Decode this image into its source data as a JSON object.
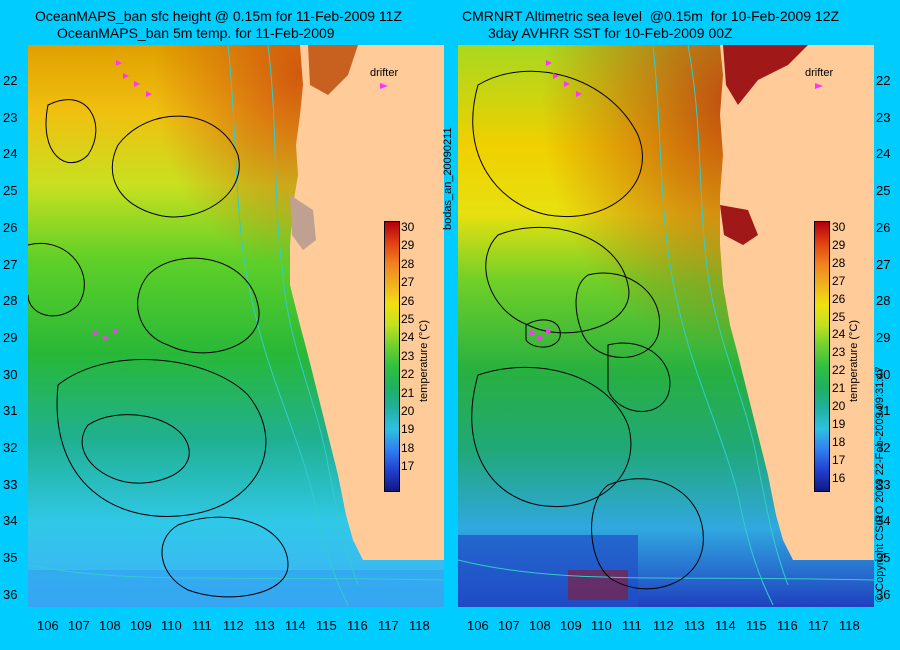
{
  "left_panel": {
    "title_line1": "OceanMAPS_ban sfc height @ 0.15m for 11-Feb-2009 11Z",
    "title_line2": "OceanMAPS_ban 5m temp. for 11-Feb-2009",
    "drifter_label": "drifter",
    "colorbar_title": "temperature (°C)"
  },
  "right_panel": {
    "title_line1": "CMRNRT Altimetric sea level  @0.15m  for 10-Feb-2009 12Z",
    "title_line2": "3day AVHRR SST for 10-Feb-2009 00Z",
    "drifter_label": "drifter",
    "colorbar_title": "temperature (°C)"
  },
  "side_label_left": "bodas_an_20090211",
  "side_label_right": "© Copyright CSIRO 2009    22-Feb-2009 09:31:47",
  "lat_labels": [
    "22",
    "23",
    "24",
    "25",
    "26",
    "27",
    "28",
    "29",
    "30",
    "31",
    "32",
    "33",
    "34",
    "35",
    "36"
  ],
  "lon_labels": [
    "106",
    "107",
    "108",
    "109",
    "110",
    "111",
    "112",
    "113",
    "114",
    "115",
    "116",
    "117",
    "118"
  ],
  "colorbar_ticks_left": [
    "30",
    "29",
    "28",
    "27",
    "26",
    "25",
    "24",
    "23",
    "22",
    "21",
    "20",
    "19",
    "18",
    "17"
  ],
  "colorbar_ticks_right": [
    "30",
    "29",
    "28",
    "27",
    "26",
    "25",
    "24",
    "23",
    "22",
    "21",
    "20",
    "19",
    "18",
    "17",
    "16"
  ],
  "colors": {
    "background": "#00ccff",
    "land": "#ffcc99",
    "contour": "#000000",
    "isobath": "#33cccc",
    "drifter": "#ff33ff"
  }
}
